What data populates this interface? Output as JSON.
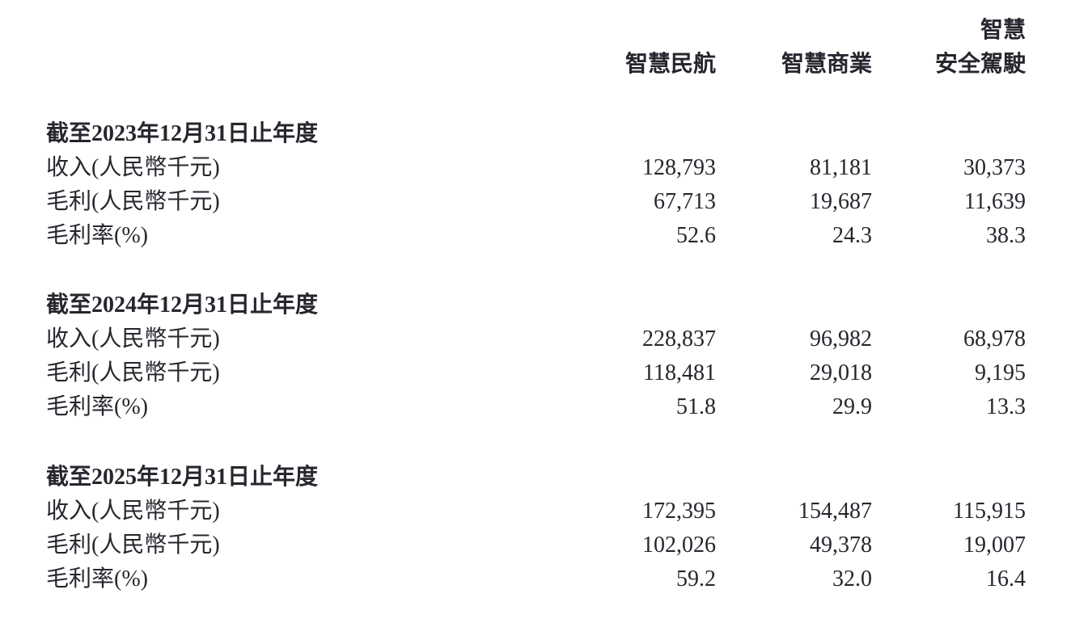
{
  "table": {
    "header": {
      "col3_line1": "智慧",
      "col1": "智慧民航",
      "col2": "智慧商業",
      "col3_line2": "安全駕駛"
    },
    "sections": [
      {
        "heading": "截至2023年12月31日止年度",
        "rows": [
          {
            "label": "收入(人民幣千元)",
            "values": [
              "128,793",
              "81,181",
              "30,373"
            ]
          },
          {
            "label": "毛利(人民幣千元)",
            "values": [
              "67,713",
              "19,687",
              "11,639"
            ]
          },
          {
            "label": "毛利率(%)",
            "values": [
              "52.6",
              "24.3",
              "38.3"
            ]
          }
        ]
      },
      {
        "heading": "截至2024年12月31日止年度",
        "rows": [
          {
            "label": "收入(人民幣千元)",
            "values": [
              "228,837",
              "96,982",
              "68,978"
            ]
          },
          {
            "label": "毛利(人民幣千元)",
            "values": [
              "118,481",
              "29,018",
              "9,195"
            ]
          },
          {
            "label": "毛利率(%)",
            "values": [
              "51.8",
              "29.9",
              "13.3"
            ]
          }
        ]
      },
      {
        "heading": "截至2025年12月31日止年度",
        "rows": [
          {
            "label": "收入(人民幣千元)",
            "values": [
              "172,395",
              "154,487",
              "115,915"
            ]
          },
          {
            "label": "毛利(人民幣千元)",
            "values": [
              "102,026",
              "49,378",
              "19,007"
            ]
          },
          {
            "label": "毛利率(%)",
            "values": [
              "59.2",
              "32.0",
              "16.4"
            ]
          }
        ]
      }
    ],
    "text_color": "#26262e",
    "background_color": "#ffffff"
  }
}
